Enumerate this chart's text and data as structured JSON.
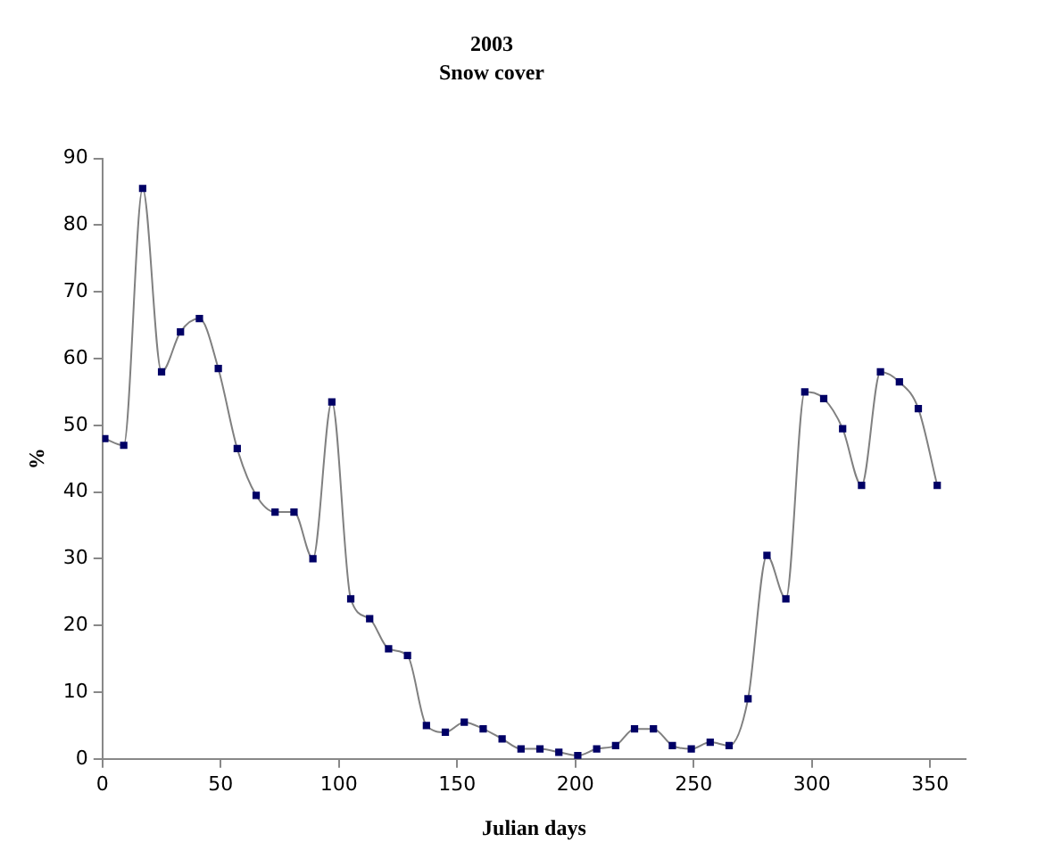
{
  "chart_data": {
    "type": "line",
    "title": "2003",
    "subtitle": "Snow cover",
    "xlabel": "Julian days",
    "ylabel": "%",
    "x": [
      1,
      9,
      17,
      25,
      33,
      41,
      49,
      57,
      65,
      73,
      81,
      89,
      97,
      105,
      113,
      121,
      129,
      137,
      145,
      153,
      161,
      169,
      177,
      185,
      193,
      201,
      209,
      217,
      225,
      233,
      241,
      249,
      257,
      265,
      273,
      281,
      289,
      297,
      305,
      313,
      321,
      329,
      337,
      345,
      353
    ],
    "series": [
      {
        "color": "#000066",
        "values": [
          48,
          47,
          85.5,
          58,
          64,
          66,
          58.5,
          46.5,
          39.5,
          37,
          37,
          30,
          53.5,
          24,
          21,
          16.5,
          15.5,
          5,
          4,
          5.5,
          4.5,
          3,
          1.5,
          1.5,
          1,
          0.5,
          1.5,
          2,
          4.5,
          4.5,
          2,
          1.5,
          2.5,
          2,
          9,
          30.5,
          24,
          55,
          54,
          49.5,
          41,
          58,
          56.5,
          52.5,
          41
        ]
      }
    ],
    "xlim": [
      0,
      365
    ],
    "xticks": [
      0,
      50,
      100,
      150,
      200,
      250,
      300,
      350
    ],
    "ylim": [
      0,
      90
    ],
    "yticks": [
      0,
      10,
      20,
      30,
      40,
      50,
      60,
      70,
      80,
      90
    ],
    "grid": false,
    "legend": false,
    "marker": "square",
    "line_style": "solid"
  }
}
